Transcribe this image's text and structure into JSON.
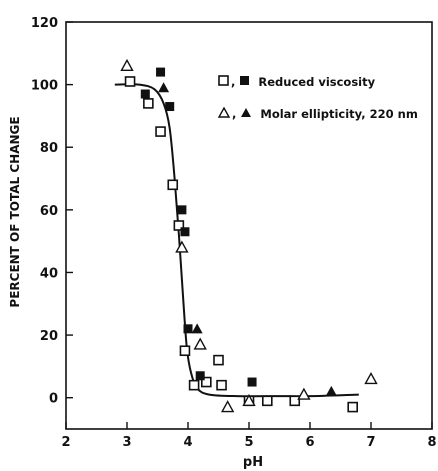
{
  "chart_data": {
    "type": "scatter",
    "xlabel": "pH",
    "ylabel": "PERCENT OF TOTAL CHANGE",
    "xlim": [
      2,
      8
    ],
    "ylim": [
      -10,
      120
    ],
    "xticks": [
      2,
      3,
      4,
      5,
      6,
      7,
      8
    ],
    "yticks": [
      0,
      20,
      40,
      60,
      80,
      100,
      120
    ],
    "grid": false,
    "legend_position": "top-right",
    "series": [
      {
        "name": "Reduced viscosity (open squares)",
        "marker": "open-square",
        "points": [
          [
            3.05,
            101
          ],
          [
            3.35,
            94
          ],
          [
            3.55,
            85
          ],
          [
            3.75,
            68
          ],
          [
            3.85,
            55
          ],
          [
            3.95,
            15
          ],
          [
            4.1,
            4
          ],
          [
            4.3,
            5
          ],
          [
            4.5,
            12
          ],
          [
            4.55,
            4
          ],
          [
            5.0,
            -1
          ],
          [
            5.3,
            -1
          ],
          [
            5.75,
            -1
          ],
          [
            6.7,
            -3
          ]
        ]
      },
      {
        "name": "Reduced viscosity (filled squares)",
        "marker": "filled-square",
        "points": [
          [
            3.3,
            97
          ],
          [
            3.55,
            104
          ],
          [
            3.7,
            93
          ],
          [
            3.9,
            60
          ],
          [
            3.95,
            53
          ],
          [
            4.0,
            22
          ],
          [
            4.2,
            7
          ],
          [
            5.05,
            5
          ]
        ]
      },
      {
        "name": "Molar ellipticity, 220 nm (open triangles)",
        "marker": "open-triangle",
        "points": [
          [
            3.0,
            106
          ],
          [
            3.9,
            48
          ],
          [
            4.2,
            17
          ],
          [
            4.65,
            -3
          ],
          [
            5.0,
            -1
          ],
          [
            5.9,
            1
          ],
          [
            7.0,
            6
          ]
        ]
      },
      {
        "name": "Molar ellipticity, 220 nm (filled triangles)",
        "marker": "filled-triangle",
        "points": [
          [
            3.6,
            99
          ],
          [
            4.15,
            22
          ],
          [
            6.35,
            2
          ]
        ]
      }
    ],
    "curve": [
      [
        2.8,
        100
      ],
      [
        3.2,
        100
      ],
      [
        3.45,
        98.5
      ],
      [
        3.6,
        94
      ],
      [
        3.7,
        86
      ],
      [
        3.78,
        70
      ],
      [
        3.85,
        52
      ],
      [
        3.92,
        32
      ],
      [
        3.98,
        16
      ],
      [
        4.05,
        8
      ],
      [
        4.15,
        3
      ],
      [
        4.35,
        1
      ],
      [
        4.8,
        0.5
      ],
      [
        5.5,
        0.5
      ],
      [
        6.0,
        0.5
      ],
      [
        6.8,
        1
      ]
    ]
  },
  "legend": {
    "open_label": "Reduced viscosity",
    "closed_label": "Molar ellipticity, 220 nm"
  },
  "colors": {
    "ink": "#111111",
    "paper": "#ffffff"
  }
}
